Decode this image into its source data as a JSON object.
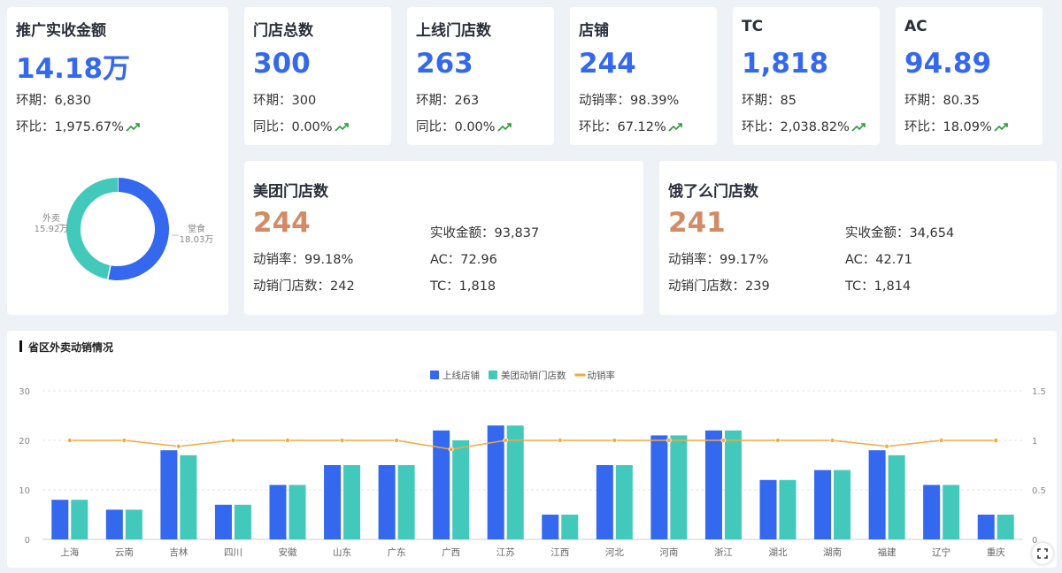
{
  "promo": {
    "title": "推广实收金额",
    "value": "14.18万",
    "period_line": "环期：6,830",
    "ratio_line": "环比：1,975.67%",
    "donut": [
      {
        "label": "外卖",
        "value_text": "15.92万",
        "value": 15.92,
        "color": "#43c9bb"
      },
      {
        "label": "堂食",
        "value_text": "18.03万",
        "value": 18.03,
        "color": "#3468ee"
      }
    ]
  },
  "kpis": [
    {
      "title": "门店总数",
      "value": "300",
      "line1": "环期：300",
      "line2": "同比：0.00%"
    },
    {
      "title": "上线门店数",
      "value": "263",
      "line1": "环期：263",
      "line2": "同比：0.00%"
    },
    {
      "title": "店铺",
      "value": "244",
      "line1": "动销率：98.39%",
      "line2": "环比：67.12%"
    },
    {
      "title": "TC",
      "value": "1,818",
      "line1": "环期：85",
      "line2": "环比：2,038.82%"
    },
    {
      "title": "AC",
      "value": "94.89",
      "line1": "环期：80.35",
      "line2": "环比：18.09%"
    }
  ],
  "platforms": [
    {
      "title": "美团门店数",
      "value": "244",
      "left1": "动销率：99.18%",
      "left2": "动销门店数：242",
      "right1": "实收金额：93,837",
      "right2": "AC：72.96",
      "right3": "TC：1,818"
    },
    {
      "title": "饿了么门店数",
      "value": "241",
      "left1": "动销率：99.17%",
      "left2": "动销门店数：239",
      "right1": "实收金额：34,654",
      "right2": "AC：42.71",
      "right3": "TC：1,814"
    }
  ],
  "chart_section": {
    "title": "省区外卖动销情况"
  },
  "chart_data": {
    "type": "bar",
    "categories": [
      "上海",
      "云南",
      "吉林",
      "四川",
      "安徽",
      "山东",
      "广东",
      "广西",
      "江苏",
      "江西",
      "河北",
      "河南",
      "浙江",
      "湖北",
      "湖南",
      "福建",
      "辽宁",
      "重庆"
    ],
    "series": [
      {
        "name": "上线店铺",
        "type": "bar",
        "color": "#3468ee",
        "values": [
          8,
          6,
          18,
          7,
          11,
          15,
          15,
          22,
          23,
          5,
          15,
          21,
          22,
          12,
          14,
          18,
          11,
          5
        ]
      },
      {
        "name": "美团动销门店数",
        "type": "bar",
        "color": "#43c9bb",
        "values": [
          8,
          6,
          17,
          7,
          11,
          15,
          15,
          20,
          23,
          5,
          15,
          21,
          22,
          12,
          14,
          17,
          11,
          5
        ]
      },
      {
        "name": "动销率",
        "type": "line",
        "color": "#f3a93b",
        "axis": "right",
        "values": [
          1,
          1,
          0.94,
          1,
          1,
          1,
          1,
          0.91,
          1,
          1,
          1,
          1,
          1,
          1,
          1,
          0.94,
          1,
          1
        ]
      }
    ],
    "y_left": {
      "ticks": [
        "0",
        "10",
        "20",
        "30"
      ],
      "tick_values": [
        0,
        10,
        20,
        30
      ],
      "range": [
        0,
        30
      ]
    },
    "y_right": {
      "ticks": [
        "0",
        "0.5",
        "1",
        "1.5"
      ],
      "tick_values": [
        0,
        0.5,
        1,
        1.5
      ],
      "range": [
        0,
        1.5
      ]
    },
    "legend_position": "top-center",
    "grid": true
  }
}
